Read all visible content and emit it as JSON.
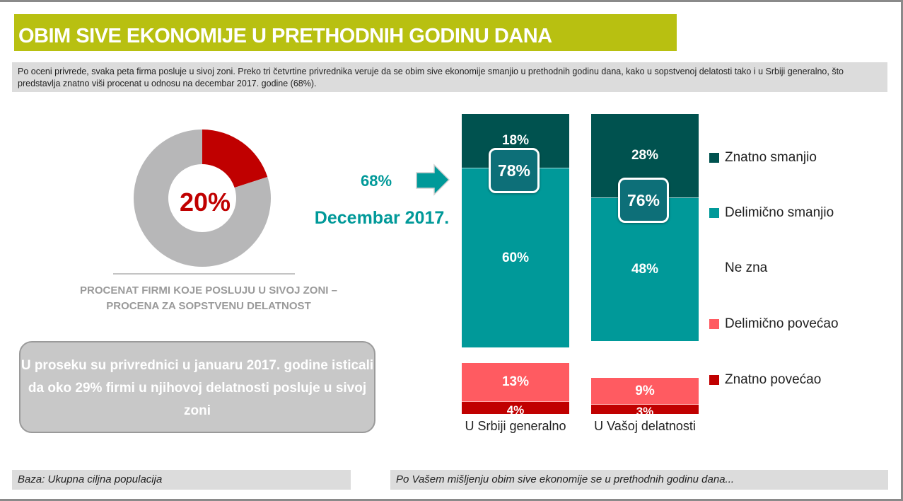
{
  "title": "OBIM SIVE EKONOMIJE U PRETHODNIH GODINU DANA",
  "description": "Po oceni privrede, svaka peta firma posluje u sivoj zoni. Preko tri četvrtine privrednika veruje da se obim sive ekonomije smanjio u prethodnih godinu dana, kako u sopstvenoj delatosti tako i u Srbiji generalno, što predstavlja znatno viši procenat u odnosu na decembar 2017. godine (68%).",
  "colors": {
    "title_bg": "#b8c011",
    "znatno_smanjio": "#00524f",
    "delimicno_smanjio": "#009999",
    "delimicno_povecao": "#ff5b61",
    "znatno_povecao": "#c00000",
    "donut_rest": "#b7b7b8",
    "accent_teal": "#009999"
  },
  "chart_data": [
    {
      "type": "pie",
      "variant": "donut",
      "values": [
        20,
        80
      ],
      "center_label": "20%",
      "caption": [
        "PROCENAT FIRMI KOJE POSLUJU U SIVOJ ZONI –",
        "PROCENA ZA SOPSTVENU DELATNOST"
      ]
    },
    {
      "type": "bar",
      "variant": "diverging-stacked",
      "categories": [
        "U Srbiji generalno",
        "U Vašoj delatnosti"
      ],
      "series": [
        {
          "name": "Znatno smanjio",
          "values": [
            18,
            28
          ],
          "labels": [
            "18%",
            "28%"
          ]
        },
        {
          "name": "Delimično smanjio",
          "values": [
            60,
            48
          ],
          "labels": [
            "60%",
            "48%"
          ]
        },
        {
          "name": "Ne zna",
          "values": [
            null,
            null
          ]
        },
        {
          "name": "Delimično povećao",
          "values": [
            13,
            9
          ],
          "labels": [
            "13%",
            "9%"
          ]
        },
        {
          "name": "Znatno povećao",
          "values": [
            4,
            3
          ],
          "labels": [
            "4%",
            "3%"
          ]
        }
      ],
      "totals": [
        "78%",
        "76%"
      ],
      "legend_position": "right",
      "comparison": {
        "value": "68%",
        "label": "Decembar 2017."
      }
    }
  ],
  "note": "U proseku su privrednici u januaru 2017. godine isticali da oko 29% firmi u njihovoj delatnosti posluje u sivoj zoni",
  "footer": {
    "left": "Baza: Ukupna ciljna populacija",
    "right": "Po Vašem mišljenju obim sive ekonomije se u prethodnih godinu dana..."
  }
}
